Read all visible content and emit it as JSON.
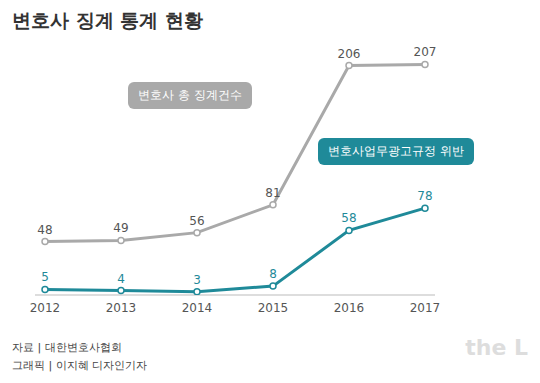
{
  "chart_data": {
    "type": "line",
    "title": "변호사 징계 통계 현황",
    "categories": [
      "2012",
      "2013",
      "2014",
      "2015",
      "2016",
      "2017"
    ],
    "series": [
      {
        "name": "변호사 총 징계건수",
        "color": "#a9a9a9",
        "values": [
          48,
          49,
          56,
          81,
          206,
          207
        ],
        "marker": "circle"
      },
      {
        "name": "변호사업무광고규정 위반",
        "color": "#1f8a99",
        "values": [
          5,
          4,
          3,
          8,
          58,
          78
        ],
        "marker": "circle"
      }
    ],
    "ylim": [
      0,
      220
    ],
    "grid": false,
    "data_labels": true,
    "tick_labels": "x",
    "annotations": [
      "자료 | 대한변호사협회",
      "그래픽 | 이지혜 디자인기자",
      "the L"
    ]
  }
}
